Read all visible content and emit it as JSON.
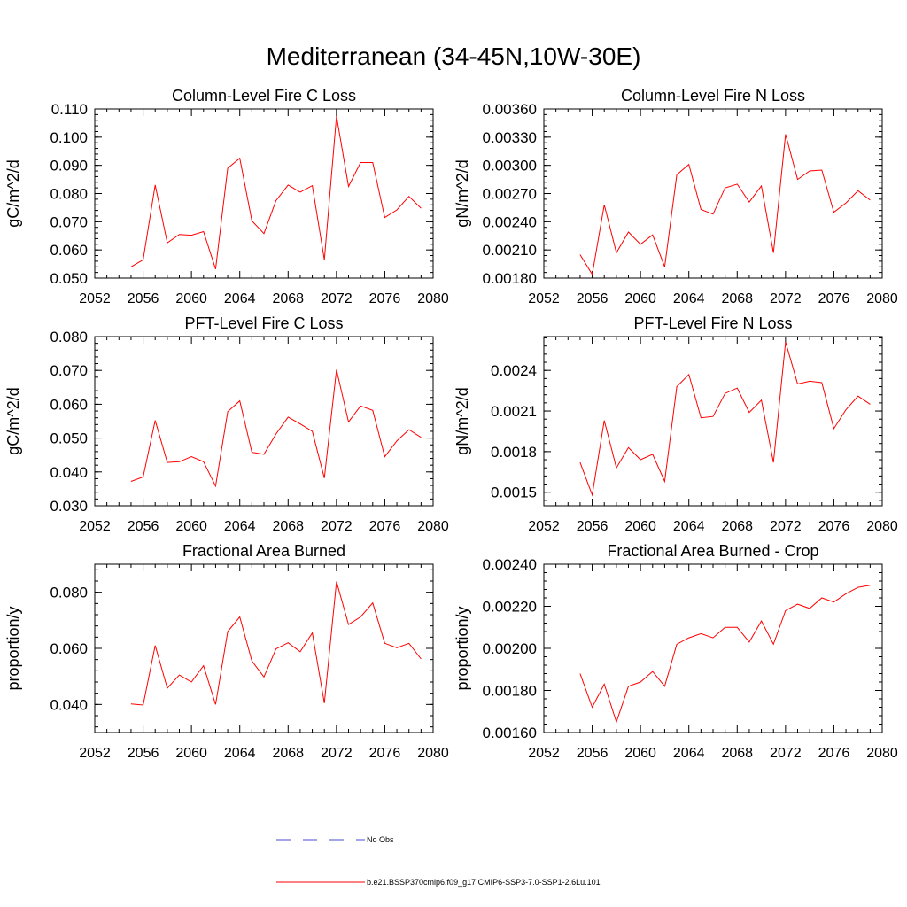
{
  "title": "Mediterranean (34-45N,10W-30E)",
  "colors": {
    "series": "#ff0000",
    "obs": "#4a4ad0",
    "axis": "#000000"
  },
  "legend": {
    "obs_label": "No Obs",
    "series_label": "b.e21.BSSP370cmip6.f09_g17.CMIP6-SSP3-7.0-SSP1-2.6Lu.101"
  },
  "chart_data": [
    {
      "type": "line",
      "title": "Column-Level Fire C Loss",
      "ylabel": "gC/m^2/d",
      "xlim": [
        2052,
        2080
      ],
      "ylim": [
        0.05,
        0.11
      ],
      "xticks": [
        2052,
        2056,
        2060,
        2064,
        2068,
        2072,
        2076,
        2080
      ],
      "yticks": [
        0.05,
        0.06,
        0.07,
        0.08,
        0.09,
        0.1,
        0.11
      ],
      "yticklabels": [
        "0.050",
        "0.060",
        "0.070",
        "0.080",
        "0.090",
        "0.100",
        "0.110"
      ],
      "x": [
        2055,
        2056,
        2057,
        2058,
        2059,
        2060,
        2061,
        2062,
        2063,
        2064,
        2065,
        2066,
        2067,
        2068,
        2069,
        2070,
        2071,
        2072,
        2073,
        2074,
        2075,
        2076,
        2077,
        2078,
        2079
      ],
      "series": [
        {
          "values": [
            0.054,
            0.0565,
            0.083,
            0.0625,
            0.0655,
            0.0652,
            0.0665,
            0.0532,
            0.089,
            0.0925,
            0.0703,
            0.0658,
            0.0775,
            0.083,
            0.0805,
            0.0828,
            0.0565,
            0.1075,
            0.0825,
            0.091,
            0.091,
            0.0715,
            0.0742,
            0.079,
            0.0748
          ]
        }
      ]
    },
    {
      "type": "line",
      "title": "Column-Level Fire N Loss",
      "ylabel": "gN/m^2/d",
      "xlim": [
        2052,
        2080
      ],
      "ylim": [
        0.0018,
        0.0036
      ],
      "xticks": [
        2052,
        2056,
        2060,
        2064,
        2068,
        2072,
        2076,
        2080
      ],
      "yticks": [
        0.0018,
        0.0021,
        0.0024,
        0.0027,
        0.003,
        0.0033,
        0.0036
      ],
      "yticklabels": [
        "0.00180",
        "0.00210",
        "0.00240",
        "0.00270",
        "0.00300",
        "0.00330",
        "0.00360"
      ],
      "x": [
        2055,
        2056,
        2057,
        2058,
        2059,
        2060,
        2061,
        2062,
        2063,
        2064,
        2065,
        2066,
        2067,
        2068,
        2069,
        2070,
        2071,
        2072,
        2073,
        2074,
        2075,
        2076,
        2077,
        2078,
        2079
      ],
      "series": [
        {
          "values": [
            0.00205,
            0.00184,
            0.00258,
            0.00207,
            0.00229,
            0.00216,
            0.00226,
            0.00192,
            0.0029,
            0.00301,
            0.00253,
            0.00248,
            0.00276,
            0.0028,
            0.00261,
            0.00278,
            0.00207,
            0.00333,
            0.00285,
            0.00294,
            0.00295,
            0.0025,
            0.0026,
            0.00273,
            0.00263
          ]
        }
      ]
    },
    {
      "type": "line",
      "title": "PFT-Level Fire C Loss",
      "ylabel": "gC/m^2/d",
      "xlim": [
        2052,
        2080
      ],
      "ylim": [
        0.03,
        0.08
      ],
      "xticks": [
        2052,
        2056,
        2060,
        2064,
        2068,
        2072,
        2076,
        2080
      ],
      "yticks": [
        0.03,
        0.04,
        0.05,
        0.06,
        0.07,
        0.08
      ],
      "yticklabels": [
        "0.030",
        "0.040",
        "0.050",
        "0.060",
        "0.070",
        "0.080"
      ],
      "x": [
        2055,
        2056,
        2057,
        2058,
        2059,
        2060,
        2061,
        2062,
        2063,
        2064,
        2065,
        2066,
        2067,
        2068,
        2069,
        2070,
        2071,
        2072,
        2073,
        2074,
        2075,
        2076,
        2077,
        2078,
        2079
      ],
      "series": [
        {
          "values": [
            0.0372,
            0.0385,
            0.0552,
            0.0428,
            0.043,
            0.0445,
            0.043,
            0.0358,
            0.0578,
            0.061,
            0.0458,
            0.0452,
            0.0512,
            0.0562,
            0.0542,
            0.052,
            0.0382,
            0.0702,
            0.0548,
            0.0595,
            0.0582,
            0.0445,
            0.0492,
            0.0525,
            0.0502
          ]
        }
      ]
    },
    {
      "type": "line",
      "title": "PFT-Level Fire N Loss",
      "ylabel": "gN/m^2/d",
      "xlim": [
        2052,
        2080
      ],
      "ylim": [
        0.0014,
        0.00265
      ],
      "xticks": [
        2052,
        2056,
        2060,
        2064,
        2068,
        2072,
        2076,
        2080
      ],
      "yticks": [
        0.0015,
        0.0018,
        0.0021,
        0.0024
      ],
      "yticklabels": [
        "0.0015",
        "0.0018",
        "0.0021",
        "0.0024"
      ],
      "x": [
        2055,
        2056,
        2057,
        2058,
        2059,
        2060,
        2061,
        2062,
        2063,
        2064,
        2065,
        2066,
        2067,
        2068,
        2069,
        2070,
        2071,
        2072,
        2073,
        2074,
        2075,
        2076,
        2077,
        2078,
        2079
      ],
      "series": [
        {
          "values": [
            0.00172,
            0.00148,
            0.00203,
            0.00168,
            0.00183,
            0.00174,
            0.00178,
            0.00158,
            0.00228,
            0.00237,
            0.00205,
            0.00206,
            0.00223,
            0.00227,
            0.00209,
            0.00218,
            0.00172,
            0.00261,
            0.0023,
            0.00232,
            0.00231,
            0.00197,
            0.00211,
            0.00221,
            0.00215
          ]
        }
      ]
    },
    {
      "type": "line",
      "title": "Fractional Area Burned",
      "ylabel": "proportion/y",
      "xlim": [
        2052,
        2080
      ],
      "ylim": [
        0.03,
        0.09
      ],
      "xticks": [
        2052,
        2056,
        2060,
        2064,
        2068,
        2072,
        2076,
        2080
      ],
      "yticks": [
        0.04,
        0.06,
        0.08
      ],
      "yticklabels": [
        "0.040",
        "0.060",
        "0.080"
      ],
      "x": [
        2055,
        2056,
        2057,
        2058,
        2059,
        2060,
        2061,
        2062,
        2063,
        2064,
        2065,
        2066,
        2067,
        2068,
        2069,
        2070,
        2071,
        2072,
        2073,
        2074,
        2075,
        2076,
        2077,
        2078,
        2079
      ],
      "series": [
        {
          "values": [
            0.0402,
            0.0398,
            0.061,
            0.0458,
            0.0505,
            0.048,
            0.0538,
            0.04,
            0.066,
            0.0712,
            0.0555,
            0.0498,
            0.0598,
            0.062,
            0.0588,
            0.0655,
            0.0405,
            0.0838,
            0.0685,
            0.0712,
            0.0762,
            0.0618,
            0.0602,
            0.0618,
            0.0562
          ]
        }
      ]
    },
    {
      "type": "line",
      "title": "Fractional Area Burned - Crop",
      "ylabel": "proportion/y",
      "xlim": [
        2052,
        2080
      ],
      "ylim": [
        0.0016,
        0.0024
      ],
      "xticks": [
        2052,
        2056,
        2060,
        2064,
        2068,
        2072,
        2076,
        2080
      ],
      "yticks": [
        0.0016,
        0.0018,
        0.002,
        0.0022,
        0.0024
      ],
      "yticklabels": [
        "0.00160",
        "0.00180",
        "0.00200",
        "0.00220",
        "0.00240"
      ],
      "x": [
        2055,
        2056,
        2057,
        2058,
        2059,
        2060,
        2061,
        2062,
        2063,
        2064,
        2065,
        2066,
        2067,
        2068,
        2069,
        2070,
        2071,
        2072,
        2073,
        2074,
        2075,
        2076,
        2077,
        2078,
        2079
      ],
      "series": [
        {
          "values": [
            0.00188,
            0.00172,
            0.00183,
            0.00165,
            0.00182,
            0.00184,
            0.00189,
            0.00182,
            0.00202,
            0.00205,
            0.00207,
            0.00205,
            0.0021,
            0.0021,
            0.00203,
            0.00213,
            0.00202,
            0.00218,
            0.00221,
            0.00219,
            0.00224,
            0.00222,
            0.00226,
            0.00229,
            0.0023
          ]
        }
      ]
    }
  ]
}
